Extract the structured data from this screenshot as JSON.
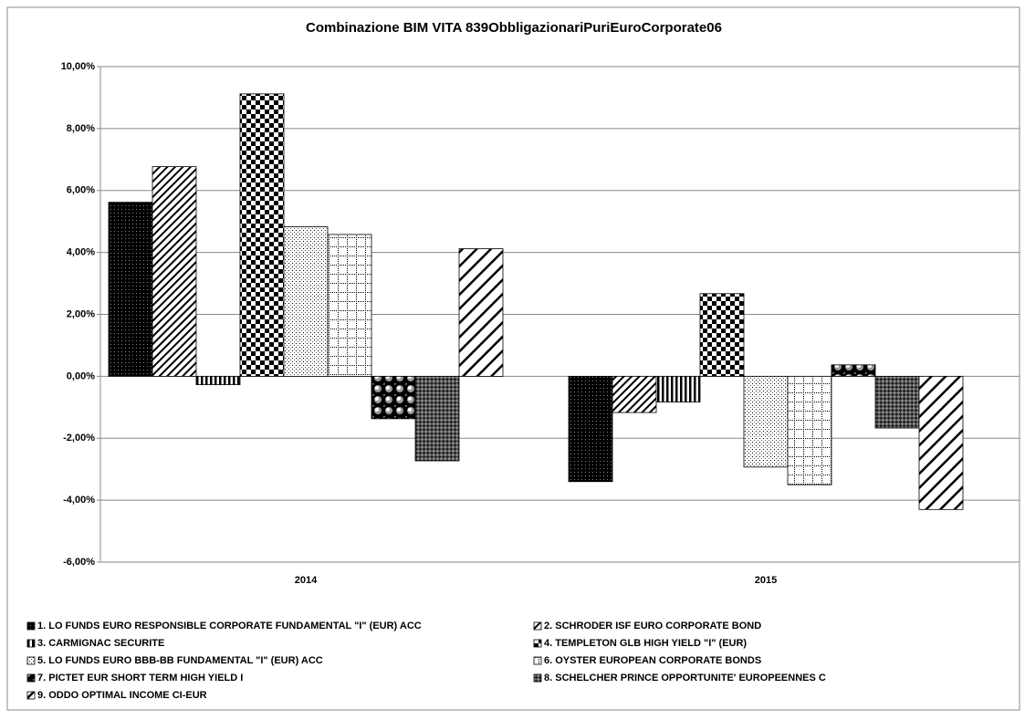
{
  "chart_data": {
    "type": "bar",
    "title": "Combinazione BIM VITA 839ObbligazionariPuriEuroCorporate06",
    "categories": [
      "2014",
      "2015"
    ],
    "series": [
      {
        "name": "1. LO FUNDS EURO RESPONSIBLE CORPORATE FUNDAMENTAL \"I\" (EUR) ACC",
        "color": "#000000",
        "values": [
          5.62,
          -3.4
        ]
      },
      {
        "name": "2. SCHRODER ISF EURO CORPORATE BOND",
        "color": "#000000",
        "values": [
          6.77,
          -1.17
        ]
      },
      {
        "name": "3. CARMIGNAC SECURITE",
        "color": "#000000",
        "values": [
          -0.27,
          -0.83
        ]
      },
      {
        "name": "4. TEMPLETON GLB HIGH YIELD \"I\" (EUR)",
        "color": "#000000",
        "values": [
          9.12,
          2.67
        ]
      },
      {
        "name": "5. LO FUNDS EURO BBB-BB FUNDAMENTAL \"I\" (EUR) ACC",
        "color": "#000000",
        "values": [
          4.83,
          -2.93
        ]
      },
      {
        "name": "6. OYSTER EUROPEAN CORPORATE BONDS",
        "color": "#000000",
        "values": [
          4.58,
          -3.5
        ]
      },
      {
        "name": "7. PICTET EUR SHORT TERM HIGH YIELD I",
        "color": "#000000",
        "values": [
          -1.37,
          0.37
        ]
      },
      {
        "name": "8. SCHELCHER PRINCE OPPORTUNITE' EUROPEENNES C",
        "color": "#000000",
        "values": [
          -2.73,
          -1.67
        ]
      },
      {
        "name": "9. ODDO OPTIMAL INCOME CI-EUR",
        "color": "#000000",
        "values": [
          4.12,
          -4.3
        ]
      }
    ],
    "ylim": [
      -6,
      10
    ],
    "yticks": [
      {
        "value": -6,
        "label": "-6,00%"
      },
      {
        "value": -4,
        "label": "-4,00%"
      },
      {
        "value": -2,
        "label": "-2,00%"
      },
      {
        "value": 0,
        "label": "0,00%"
      },
      {
        "value": 2,
        "label": "2,00%"
      },
      {
        "value": 4,
        "label": "4,00%"
      },
      {
        "value": 6,
        "label": "6,00%"
      },
      {
        "value": 8,
        "label": "8,00%"
      },
      {
        "value": 10,
        "label": "10,00%"
      }
    ],
    "grid": true,
    "legend": "bottom"
  }
}
